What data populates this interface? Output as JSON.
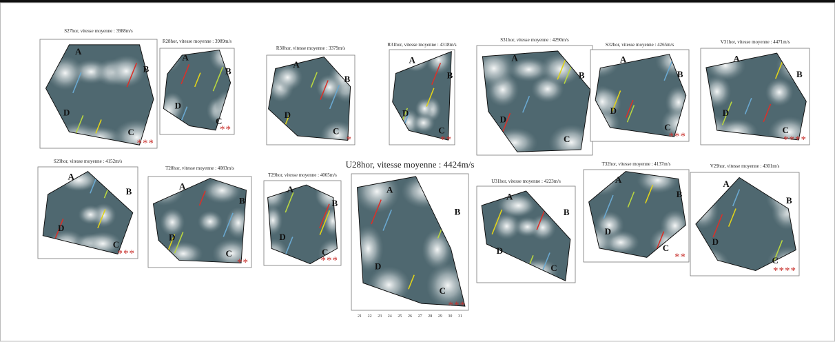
{
  "panels": [
    {
      "title": "S27hor, vitesse moyenne : 3988m/s",
      "stars": "***",
      "corners": [
        "A",
        "B",
        "C",
        "D"
      ]
    },
    {
      "title": "R28hor, vitesse moyenne : 3989m/s",
      "stars": "**",
      "corners": [
        "A",
        "B",
        "C",
        "D"
      ]
    },
    {
      "title": "R30hor, vitesse moyenne : 3379m/s",
      "stars": "*",
      "corners": [
        "A",
        "B",
        "C",
        "D"
      ]
    },
    {
      "title": "R31hor, vitesse moyenne : 4318m/s",
      "stars": "**",
      "corners": [
        "A",
        "B",
        "C",
        "D"
      ]
    },
    {
      "title": "S31hor, vitesse moyenne : 4290m/s",
      "corners": [
        "A",
        "B",
        "C",
        "D"
      ]
    },
    {
      "title": "S32hor, vitesse moyenne : 4265m/s",
      "stars": "***",
      "corners": [
        "A",
        "B",
        "C",
        "D"
      ]
    },
    {
      "title": "V31hor, vitesse moyenne : 4471m/s",
      "stars": "****",
      "corners": [
        "A",
        "B",
        "C",
        "D"
      ]
    },
    {
      "title": "S29hor, vitesse moyenne : 4152m/s",
      "stars": "***",
      "corners": [
        "A",
        "B",
        "C",
        "D"
      ]
    },
    {
      "title": "T28hor, vitesse moyenne : 4083m/s",
      "stars": "**",
      "corners": [
        "A",
        "B",
        "C",
        "D"
      ]
    },
    {
      "title": "T29hor, vitesse moyenne : 4065m/s",
      "stars": "***",
      "corners": [
        "A",
        "B",
        "C",
        "D"
      ]
    },
    {
      "title": "U28hor, vitesse moyenne : 4424m/s",
      "stars": "***",
      "corners": [
        "A",
        "B",
        "C",
        "D"
      ],
      "x_ticks": [
        "21",
        "22",
        "23",
        "24",
        "25",
        "26",
        "27",
        "28",
        "29",
        "30",
        "31"
      ]
    },
    {
      "title": "U31hor, vitesse moyenne : 4223m/s",
      "corners": [
        "A",
        "B",
        "C",
        "D"
      ]
    },
    {
      "title": "T32hor, vitesse moyenne : 4137m/s",
      "stars": "**",
      "corners": [
        "A",
        "B",
        "C",
        "D"
      ]
    },
    {
      "title": "V29hor, vitesse moyenne : 4301m/s",
      "stars": "****",
      "corners": [
        "A",
        "B",
        "C",
        "D"
      ]
    }
  ]
}
